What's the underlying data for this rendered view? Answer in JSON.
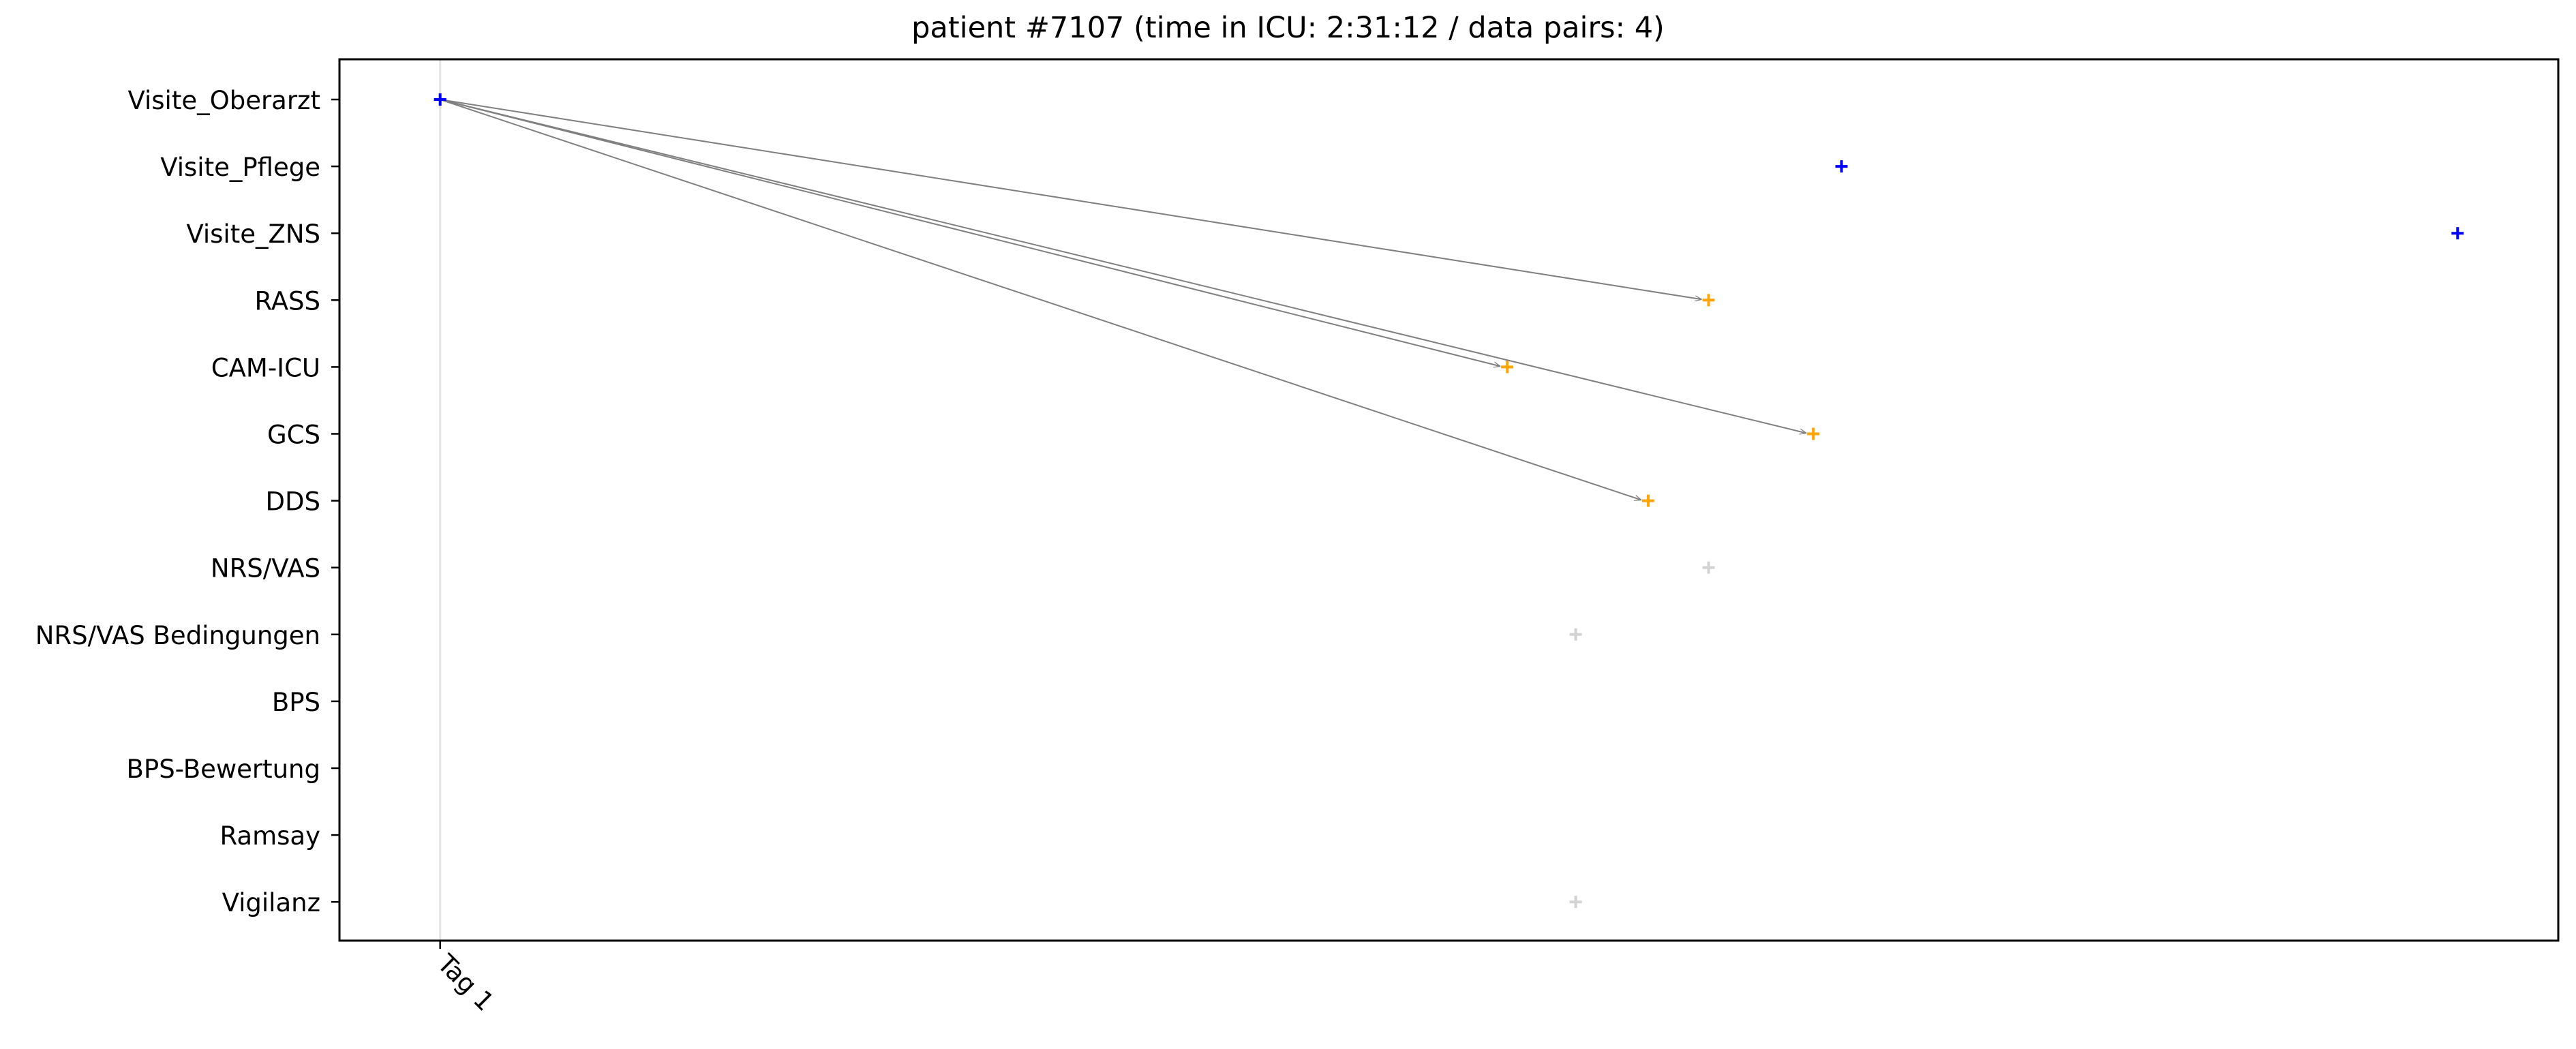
{
  "chart_data": {
    "type": "scatter",
    "title": "patient #7107 (time in ICU: 2:31:12 / data pairs: 4)",
    "categories": [
      "Visite_Oberarzt",
      "Visite_Pflege",
      "Visite_ZNS",
      "RASS",
      "CAM-ICU",
      "GCS",
      "DDS",
      "NRS/VAS",
      "NRS/VAS Bedingungen",
      "BPS",
      "BPS-Bewertung",
      "Ramsay",
      "Vigilanz"
    ],
    "x_ticks": [
      {
        "label": "Tag 1",
        "x": 0
      }
    ],
    "x_unit": "hours since Tag 1",
    "xlim": [
      -0.125,
      2.63
    ],
    "grid": false,
    "legend": "none",
    "colors": {
      "visit": "#0000ff",
      "paired": "#ffa500",
      "other": "#d3d3d3",
      "arrow": "#808080",
      "vline": "#e5e5e5"
    },
    "series": [
      {
        "group": "visit",
        "points": [
          {
            "category": "Visite_Oberarzt",
            "x": 0.0
          },
          {
            "category": "Visite_Pflege",
            "x": 1.74
          },
          {
            "category": "Visite_ZNS",
            "x": 2.505
          }
        ]
      },
      {
        "group": "paired",
        "points": [
          {
            "category": "RASS",
            "x": 1.575
          },
          {
            "category": "CAM-ICU",
            "x": 1.325
          },
          {
            "category": "GCS",
            "x": 1.705
          },
          {
            "category": "DDS",
            "x": 1.5
          }
        ]
      },
      {
        "group": "other",
        "points": [
          {
            "category": "NRS/VAS",
            "x": 1.575
          },
          {
            "category": "NRS/VAS Bedingungen",
            "x": 1.41
          },
          {
            "category": "Vigilanz",
            "x": 1.41
          }
        ]
      }
    ],
    "arrows": [
      {
        "from": {
          "category": "Visite_Oberarzt",
          "x": 0.0
        },
        "to": {
          "category": "RASS",
          "x": 1.575
        }
      },
      {
        "from": {
          "category": "Visite_Oberarzt",
          "x": 0.0
        },
        "to": {
          "category": "CAM-ICU",
          "x": 1.325
        }
      },
      {
        "from": {
          "category": "Visite_Oberarzt",
          "x": 0.0
        },
        "to": {
          "category": "GCS",
          "x": 1.705
        }
      },
      {
        "from": {
          "category": "Visite_Oberarzt",
          "x": 0.0
        },
        "to": {
          "category": "DDS",
          "x": 1.5
        }
      }
    ],
    "vline": {
      "x": 0
    }
  }
}
